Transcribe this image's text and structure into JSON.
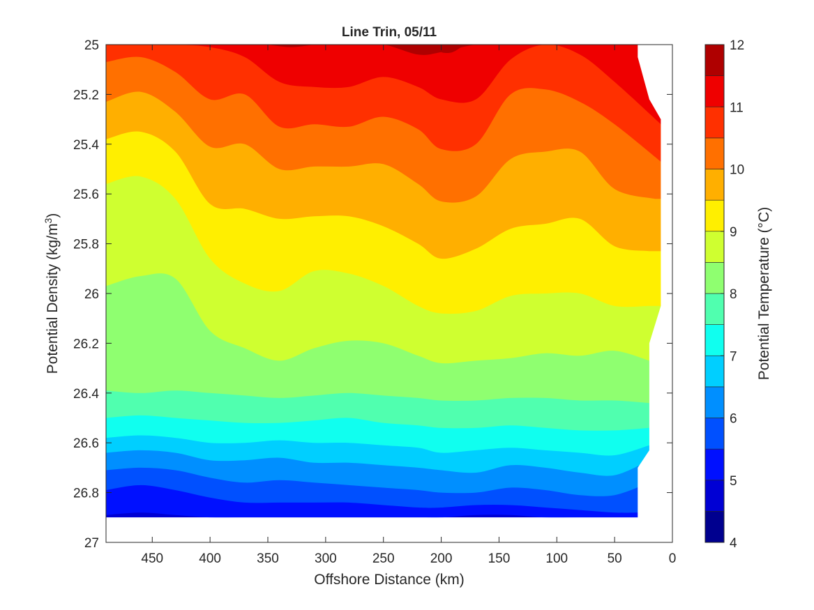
{
  "chart_data": {
    "type": "heatmap",
    "title": "Line Trin, 05/11",
    "xlabel": "Offshore Distance (km)",
    "ylabel": "Potential Density (kg/m",
    "ylabel_sup": "3",
    "ylabel_close": ")",
    "colorbar_label": "Potential Temperature (°C)",
    "xlim": [
      490,
      0
    ],
    "ylim": [
      25,
      27
    ],
    "x_reversed": true,
    "y_reversed": true,
    "xticks": [
      450,
      400,
      350,
      300,
      250,
      200,
      150,
      100,
      50,
      0
    ],
    "yticks": [
      25,
      25.2,
      25.4,
      25.6,
      25.8,
      26,
      26.2,
      26.4,
      26.6,
      26.8,
      27
    ],
    "colorbar_range": [
      4,
      12
    ],
    "colorbar_ticks": [
      4,
      5,
      6,
      7,
      8,
      9,
      10,
      11,
      12
    ],
    "levels": [
      4,
      4.5,
      5,
      5.5,
      6,
      6.5,
      7,
      7.5,
      8,
      8.5,
      9,
      9.5,
      10,
      10.5,
      11,
      11.5,
      12
    ],
    "level_colors": [
      "#00008f",
      "#0000d4",
      "#0010ff",
      "#0050ff",
      "#008fff",
      "#00cfff",
      "#10ffef",
      "#50ffaf",
      "#8fff70",
      "#cfff30",
      "#ffef00",
      "#ffaf00",
      "#ff7000",
      "#ff3000",
      "#ef0000",
      "#af0000"
    ],
    "grid": false,
    "data_extent": {
      "x": [
        490,
        30,
        20,
        10
      ],
      "y_top": 25,
      "y_bottom": 26.9
    },
    "contours": [
      {
        "level": 5.0,
        "x": [
          490,
          460,
          430,
          400,
          370,
          340,
          310,
          280,
          250,
          220,
          200,
          170,
          140,
          110,
          80,
          50,
          30
        ],
        "y": [
          26.89,
          26.88,
          26.89,
          26.9,
          26.9,
          26.9,
          26.9,
          26.9,
          26.9,
          26.9,
          26.9,
          26.89,
          26.89,
          26.9,
          26.9,
          26.9,
          26.9
        ]
      },
      {
        "level": 5.5,
        "x": [
          490,
          460,
          430,
          400,
          370,
          340,
          310,
          280,
          250,
          220,
          200,
          170,
          140,
          110,
          80,
          50,
          30
        ],
        "y": [
          26.79,
          26.77,
          26.79,
          26.82,
          26.84,
          26.84,
          26.84,
          26.84,
          26.85,
          26.86,
          26.86,
          26.85,
          26.85,
          26.86,
          26.87,
          26.88,
          26.88
        ]
      },
      {
        "level": 6.0,
        "x": [
          490,
          460,
          430,
          400,
          370,
          340,
          310,
          280,
          250,
          220,
          200,
          170,
          140,
          110,
          80,
          50,
          20
        ],
        "y": [
          26.71,
          26.7,
          26.71,
          26.74,
          26.76,
          26.75,
          26.76,
          26.77,
          26.78,
          26.79,
          26.8,
          26.8,
          26.78,
          26.79,
          26.81,
          26.81,
          26.76
        ]
      },
      {
        "level": 6.5,
        "x": [
          490,
          460,
          430,
          400,
          370,
          340,
          310,
          280,
          250,
          220,
          200,
          170,
          140,
          110,
          80,
          50,
          20
        ],
        "y": [
          26.64,
          26.63,
          26.64,
          26.67,
          26.67,
          26.66,
          26.68,
          26.68,
          26.69,
          26.7,
          26.71,
          26.72,
          26.69,
          26.7,
          26.72,
          26.73,
          26.67
        ]
      },
      {
        "level": 7.0,
        "x": [
          490,
          460,
          430,
          400,
          370,
          340,
          310,
          280,
          250,
          220,
          200,
          170,
          140,
          110,
          80,
          50,
          20
        ],
        "y": [
          26.58,
          26.57,
          26.58,
          26.6,
          26.6,
          26.59,
          26.6,
          26.6,
          26.61,
          26.62,
          26.64,
          26.63,
          26.62,
          26.63,
          26.64,
          26.65,
          26.61
        ]
      },
      {
        "level": 7.5,
        "x": [
          490,
          460,
          430,
          400,
          370,
          340,
          310,
          280,
          250,
          220,
          200,
          170,
          140,
          110,
          80,
          50,
          20
        ],
        "y": [
          26.5,
          26.49,
          26.5,
          26.51,
          26.52,
          26.52,
          26.51,
          26.5,
          26.52,
          26.53,
          26.54,
          26.54,
          26.53,
          26.54,
          26.55,
          26.55,
          26.54
        ]
      },
      {
        "level": 8.0,
        "x": [
          490,
          460,
          430,
          400,
          370,
          340,
          310,
          280,
          250,
          220,
          200,
          170,
          140,
          110,
          80,
          50,
          20
        ],
        "y": [
          26.39,
          26.4,
          26.39,
          26.4,
          26.41,
          26.42,
          26.41,
          26.4,
          26.41,
          26.42,
          26.43,
          26.43,
          26.42,
          26.42,
          26.43,
          26.43,
          26.44
        ]
      },
      {
        "level": 8.5,
        "x": [
          490,
          460,
          430,
          400,
          370,
          340,
          310,
          280,
          250,
          220,
          200,
          170,
          140,
          110,
          80,
          50,
          20
        ],
        "y": [
          25.97,
          25.93,
          25.94,
          26.15,
          26.22,
          26.27,
          26.22,
          26.19,
          26.2,
          26.25,
          26.28,
          26.27,
          26.26,
          26.24,
          26.25,
          26.23,
          26.27
        ]
      },
      {
        "level": 9.0,
        "x": [
          490,
          460,
          430,
          400,
          370,
          340,
          310,
          280,
          250,
          220,
          200,
          170,
          140,
          110,
          80,
          50,
          20
        ],
        "y": [
          25.56,
          25.53,
          25.62,
          25.86,
          25.96,
          25.99,
          25.91,
          25.92,
          25.97,
          26.05,
          26.08,
          26.07,
          26.01,
          26.0,
          26.0,
          26.05,
          26.05
        ]
      },
      {
        "level": 9.5,
        "x": [
          490,
          460,
          430,
          400,
          370,
          340,
          310,
          280,
          250,
          220,
          200,
          170,
          140,
          110,
          80,
          50,
          20
        ],
        "y": [
          25.38,
          25.35,
          25.43,
          25.64,
          25.66,
          25.7,
          25.69,
          25.69,
          25.73,
          25.8,
          25.86,
          25.82,
          25.74,
          25.72,
          25.7,
          25.81,
          25.83
        ]
      },
      {
        "level": 10.0,
        "x": [
          490,
          460,
          430,
          400,
          370,
          340,
          310,
          280,
          250,
          220,
          200,
          170,
          140,
          110,
          80,
          50,
          15
        ],
        "y": [
          25.23,
          25.19,
          25.27,
          25.41,
          25.4,
          25.5,
          25.49,
          25.49,
          25.48,
          25.56,
          25.63,
          25.61,
          25.46,
          25.43,
          25.43,
          25.58,
          25.62
        ]
      },
      {
        "level": 10.5,
        "x": [
          490,
          460,
          430,
          400,
          370,
          340,
          310,
          280,
          250,
          220,
          200,
          170,
          140,
          110,
          80,
          50,
          10
        ],
        "y": [
          25.07,
          25.05,
          25.11,
          25.22,
          25.2,
          25.33,
          25.32,
          25.33,
          25.29,
          25.34,
          25.42,
          25.4,
          25.2,
          25.18,
          25.23,
          25.32,
          25.47
        ]
      },
      {
        "level": 11.0,
        "x": [
          490,
          460,
          430,
          400,
          370,
          340,
          310,
          280,
          250,
          220,
          200,
          170,
          140,
          110,
          80,
          50,
          10
        ],
        "y": [
          25.0,
          25.0,
          25.0,
          25.01,
          25.05,
          25.15,
          25.17,
          25.17,
          25.13,
          25.17,
          25.22,
          25.22,
          25.06,
          25.0,
          25.04,
          25.15,
          25.32
        ]
      },
      {
        "level": 11.5,
        "x": [
          410,
          370,
          340,
          310,
          280,
          250,
          220,
          200,
          170,
          140,
          110,
          90
        ],
        "y": [
          25.0,
          25.0,
          25.0,
          25.0,
          25.0,
          25.0,
          25.04,
          25.03,
          25.0,
          25.0,
          25.0,
          25.0
        ]
      }
    ],
    "warm_patches": [
      {
        "level": 12.0,
        "x": [
          205,
          200,
          190,
          180
        ],
        "y": [
          25.0,
          25.03,
          25.03,
          25.0
        ]
      },
      {
        "level": 12.0,
        "x": [
          350,
          330,
          310
        ],
        "y": [
          25.0,
          25.01,
          25.0
        ]
      }
    ]
  }
}
